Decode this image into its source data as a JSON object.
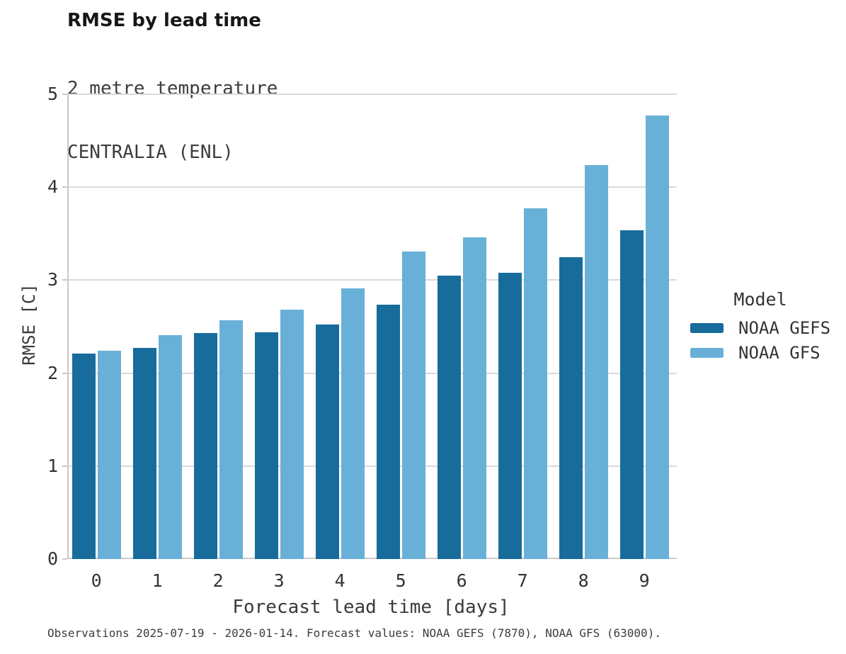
{
  "header": {
    "title": "RMSE by lead time",
    "subtitle1": "2 metre temperature",
    "subtitle2": "CENTRALIA (ENL)"
  },
  "chart_data": {
    "type": "bar",
    "title": "RMSE by lead time",
    "subtitle": [
      "2 metre temperature",
      "CENTRALIA (ENL)"
    ],
    "categories": [
      "0",
      "1",
      "2",
      "3",
      "4",
      "5",
      "6",
      "7",
      "8",
      "9"
    ],
    "series": [
      {
        "name": "NOAA GEFS",
        "color": "#176c9c",
        "values": [
          2.21,
          2.27,
          2.43,
          2.44,
          2.52,
          2.74,
          3.05,
          3.08,
          3.25,
          3.54
        ]
      },
      {
        "name": "NOAA GFS",
        "color": "#69b0d9",
        "values": [
          2.24,
          2.41,
          2.57,
          2.68,
          2.91,
          3.31,
          3.46,
          3.77,
          4.24,
          4.77
        ]
      }
    ],
    "xlabel": "Forecast lead time [days]",
    "ylabel": "RMSE [C]",
    "ylim": [
      0,
      5
    ],
    "yticks": [
      0,
      1,
      2,
      3,
      4,
      5
    ],
    "grid": "horizontal",
    "legend_position": "right",
    "legend_title": "Model"
  },
  "legend": {
    "title": "Model",
    "items": [
      {
        "label": "NOAA GEFS",
        "color": "#176c9c"
      },
      {
        "label": "NOAA GFS",
        "color": "#69b0d9"
      }
    ]
  },
  "footer": {
    "caption": "Observations 2025-07-19 - 2026-01-14. Forecast values: NOAA GEFS (7870), NOAA GFS (63000)."
  },
  "colors": {
    "background": "#ffffff",
    "gridline": "#dadada",
    "axis_spine": "#c9c9c9",
    "text": "#333333"
  }
}
